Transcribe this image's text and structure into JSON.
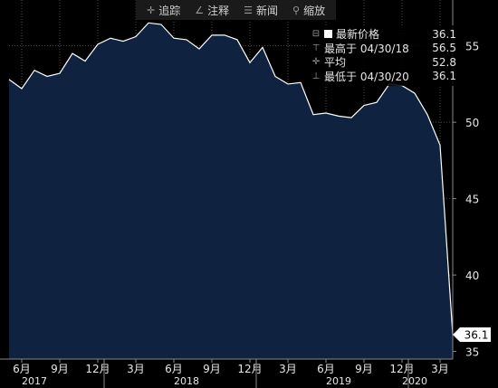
{
  "toolbar": {
    "items": [
      {
        "label": "追踪",
        "icon": "crosshair-icon"
      },
      {
        "label": "注释",
        "icon": "pencil-icon"
      },
      {
        "label": "新闻",
        "icon": "news-icon"
      },
      {
        "label": "缩放",
        "icon": "magnifier-icon"
      }
    ]
  },
  "legend": {
    "rows": [
      {
        "label": "最新价格",
        "value": "36.1",
        "marker": "square"
      },
      {
        "label": "最高于 04/30/18",
        "value": "56.5",
        "marker": "high"
      },
      {
        "label": "平均",
        "value": "52.8",
        "marker": "avg"
      },
      {
        "label": "最低于 04/30/20",
        "value": "36.1",
        "marker": "low"
      }
    ]
  },
  "colors": {
    "background": "#000000",
    "area_fill": "#0f2240",
    "line": "#ffffff",
    "grid": "#4a4a4a",
    "axis_text": "#e6e6e6",
    "tag_bg": "#ffffff",
    "tag_text": "#000000"
  },
  "chart_data": {
    "type": "area",
    "x": [
      "2017-05",
      "2017-06",
      "2017-07",
      "2017-08",
      "2017-09",
      "2017-10",
      "2017-11",
      "2017-12",
      "2018-01",
      "2018-02",
      "2018-03",
      "2018-04",
      "2018-05",
      "2018-06",
      "2018-07",
      "2018-08",
      "2018-09",
      "2018-10",
      "2018-11",
      "2018-12",
      "2019-01",
      "2019-02",
      "2019-03",
      "2019-04",
      "2019-05",
      "2019-06",
      "2019-07",
      "2019-08",
      "2019-09",
      "2019-10",
      "2019-11",
      "2019-12",
      "2020-01",
      "2020-02",
      "2020-03",
      "2020-04"
    ],
    "values": [
      52.8,
      52.2,
      53.4,
      53.0,
      53.2,
      54.5,
      54.0,
      55.1,
      55.5,
      55.3,
      55.6,
      56.5,
      56.4,
      55.5,
      55.4,
      54.8,
      55.7,
      55.7,
      55.4,
      53.9,
      54.9,
      53.0,
      52.5,
      52.6,
      50.5,
      50.6,
      50.4,
      50.3,
      51.1,
      51.3,
      52.5,
      52.4,
      51.9,
      50.5,
      48.5,
      36.1
    ],
    "ylim": [
      34.5,
      58
    ],
    "yticks": [
      35,
      40,
      45,
      50,
      55
    ],
    "last_value_tag": "36.1",
    "xtick_labels": [
      {
        "label": "6月",
        "x": "2017-06"
      },
      {
        "label": "9月",
        "x": "2017-09"
      },
      {
        "label": "12月",
        "x": "2017-12"
      },
      {
        "label": "3月",
        "x": "2018-03"
      },
      {
        "label": "6月",
        "x": "2018-06"
      },
      {
        "label": "9月",
        "x": "2018-09"
      },
      {
        "label": "12月",
        "x": "2018-12"
      },
      {
        "label": "3月",
        "x": "2019-03"
      },
      {
        "label": "6月",
        "x": "2019-06"
      },
      {
        "label": "9月",
        "x": "2019-09"
      },
      {
        "label": "12月",
        "x": "2019-12"
      },
      {
        "label": "3月",
        "x": "2020-03"
      }
    ],
    "year_labels": [
      {
        "label": "2017",
        "x": "2017-07"
      },
      {
        "label": "2018",
        "x": "2018-07"
      },
      {
        "label": "2019",
        "x": "2019-07"
      },
      {
        "label": "2020",
        "x": "2020-01"
      }
    ],
    "year_separators": [
      "2017-12",
      "2018-12",
      "2019-12"
    ],
    "grid": true
  }
}
